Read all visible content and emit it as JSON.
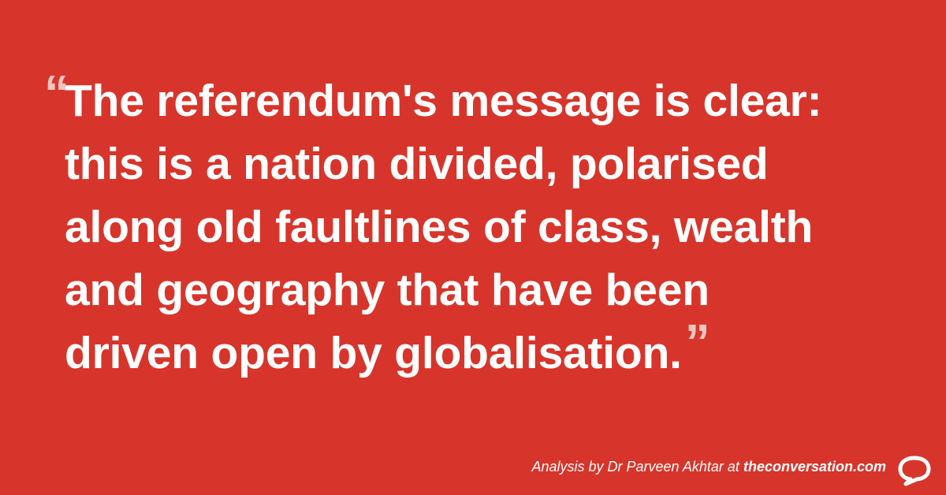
{
  "quote": {
    "open_mark": "“",
    "lines": [
      "The referendum's message is clear:",
      "this is a nation divided, polarised",
      "along old faultlines of class, wealth",
      "and geography that have been",
      "driven open by globalisation."
    ],
    "close_mark": "”"
  },
  "footer": {
    "attribution": "Analysis by Dr Parveen Akhtar at",
    "site": "theconversation.com"
  },
  "colors": {
    "background": "#d7352b",
    "text": "#ffffff",
    "quote_marks": "#f0c4bf"
  },
  "icons": {
    "logo": "speech-bubble-logo-icon"
  }
}
